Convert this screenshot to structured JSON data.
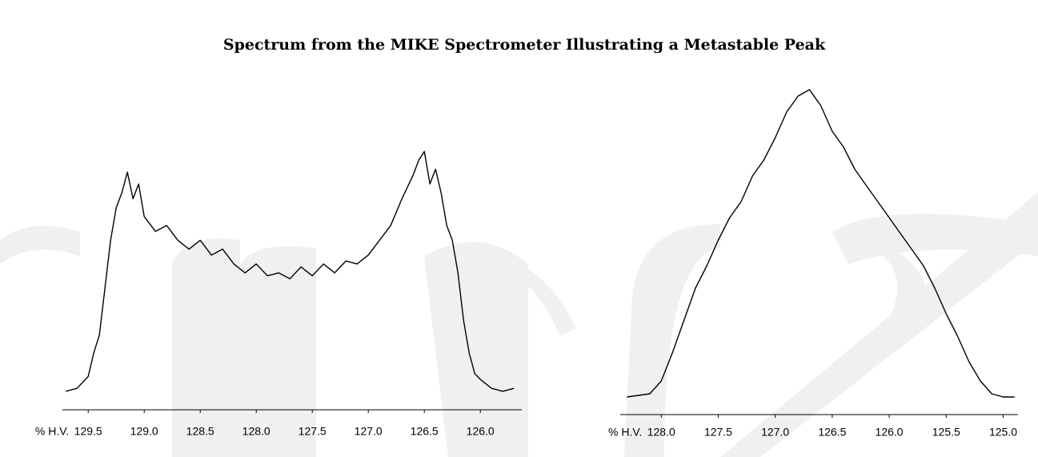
{
  "title": "Spectrum from the MIKE Spectrometer Illustrating a Metastable Peak",
  "chart_data": [
    {
      "type": "line",
      "xlabel": "% H.V.",
      "color": "#000000",
      "xlim": [
        129.73,
        125.63
      ],
      "ylim": [
        0,
        100
      ],
      "xticks": [
        129.5,
        {
          "value": 129,
          "label": "129.0"
        },
        128.5,
        {
          "value": 128,
          "label": "128.0"
        },
        127.5,
        {
          "value": 127,
          "label": "127.0"
        },
        126.5,
        {
          "value": 126,
          "label": "126.0"
        }
      ],
      "x": [
        129.7,
        129.6,
        129.5,
        129.45,
        129.4,
        129.35,
        129.3,
        129.25,
        129.2,
        129.15,
        129.1,
        129.05,
        129.0,
        128.9,
        128.8,
        128.7,
        128.6,
        128.5,
        128.4,
        128.3,
        128.2,
        128.1,
        128.0,
        127.9,
        127.8,
        127.7,
        127.6,
        127.5,
        127.4,
        127.3,
        127.2,
        127.1,
        127.0,
        126.9,
        126.8,
        126.7,
        126.6,
        126.55,
        126.5,
        126.45,
        126.4,
        126.35,
        126.3,
        126.25,
        126.2,
        126.15,
        126.1,
        126.05,
        126.0,
        125.9,
        125.8,
        125.7
      ],
      "values": [
        3,
        4,
        8,
        16,
        22,
        38,
        54,
        65,
        70,
        77,
        68,
        73,
        62,
        57,
        59,
        54,
        51,
        54,
        49,
        51,
        46,
        43,
        46,
        42,
        43,
        41,
        45,
        42,
        46,
        43,
        47,
        46,
        49,
        54,
        59,
        68,
        76,
        81,
        84,
        73,
        78,
        70,
        59,
        54,
        43,
        27,
        16,
        9,
        7,
        4,
        3,
        4
      ]
    },
    {
      "type": "line",
      "xlabel": "% H.V.",
      "color": "#000000",
      "xlim": [
        128.36,
        124.87
      ],
      "ylim": [
        0,
        100
      ],
      "xticks": [
        {
          "value": 128,
          "label": "128.0"
        },
        127.5,
        {
          "value": 127,
          "label": "127.0"
        },
        126.5,
        {
          "value": 126,
          "label": "126.0"
        },
        125.5,
        {
          "value": 125,
          "label": "125.0"
        }
      ],
      "x": [
        128.3,
        128.1,
        128.0,
        127.9,
        127.8,
        127.7,
        127.6,
        127.5,
        127.4,
        127.3,
        127.2,
        127.1,
        127.0,
        126.9,
        126.8,
        126.7,
        126.6,
        126.5,
        126.4,
        126.3,
        126.2,
        126.1,
        126.0,
        125.9,
        125.8,
        125.7,
        125.6,
        125.5,
        125.4,
        125.3,
        125.2,
        125.1,
        125.0,
        124.9
      ],
      "values": [
        1,
        2,
        6,
        15,
        25,
        35,
        42,
        50,
        57,
        62,
        70,
        75,
        82,
        90,
        95,
        97,
        92,
        84,
        79,
        72,
        67,
        62,
        57,
        52,
        47,
        42,
        35,
        27,
        20,
        12,
        6,
        2,
        1,
        1
      ]
    }
  ]
}
